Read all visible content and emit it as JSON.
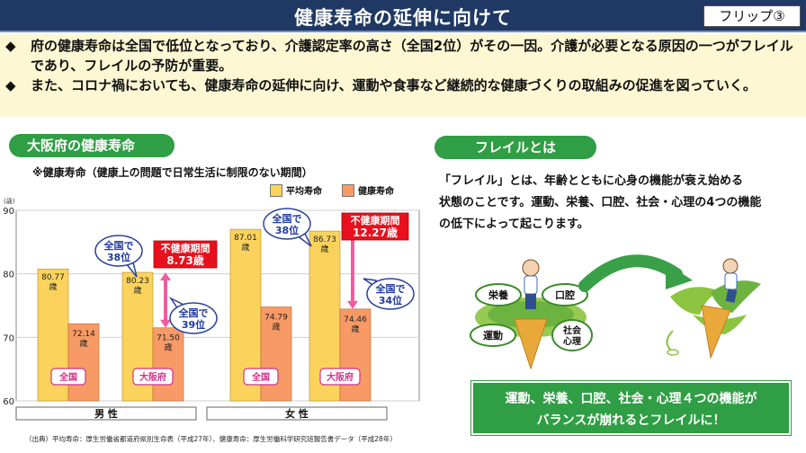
{
  "header": {
    "title": "健康寿命の延伸に向けて",
    "flip_label": "フリップ③"
  },
  "intro": {
    "bullet_mark": "◆",
    "bullets": [
      "府の健康寿命は全国で低位となっており、介護認定率の高さ（全国2位）がその一因。介護が必要となる原因の一つがフレイルであり、フレイルの予防が重要。",
      "また、コロナ禍においても、健康寿命の延伸に向け、運動や食事など継続的な健康づくりの取組みの促進を図っていく。"
    ]
  },
  "osaka_section": {
    "pill": "大阪府の健康寿命",
    "note": "※健康寿命（健康上の問題で日常生活に制限のない期間）",
    "source": "（出典）平均寿命：厚生労働省都道府県別生命表（平成27年）、健康寿命：厚生労働科学研究班報告書データ（平成28年）"
  },
  "chart_data": {
    "type": "bar",
    "y_unit_label": "(歳)",
    "ylim": [
      60,
      90
    ],
    "yticks": [
      60,
      70,
      80,
      90
    ],
    "legend": [
      {
        "label": "平均寿命",
        "color": "#fbd35c"
      },
      {
        "label": "健康寿命",
        "color": "#f79a66"
      }
    ],
    "groups": [
      {
        "label": "全国",
        "gender": "男性",
        "avg": 80.77,
        "avg_label": "80.77\n歳",
        "healthy": 72.14,
        "healthy_label": "72.14\n歳"
      },
      {
        "label": "大阪府",
        "gender": "男性",
        "avg": 80.23,
        "avg_label": "80.23\n歳",
        "healthy": 71.5,
        "healthy_label": "71.50\n歳"
      },
      {
        "label": "全国",
        "gender": "女性",
        "avg": 87.01,
        "avg_label": "87.01\n歳",
        "healthy": 74.79,
        "healthy_label": "74.79\n歳"
      },
      {
        "label": "大阪府",
        "gender": "女性",
        "avg": 86.73,
        "avg_label": "86.73\n歳",
        "healthy": 74.46,
        "healthy_label": "74.46\n歳"
      }
    ],
    "genders": [
      "男 性",
      "女 性"
    ],
    "callouts": [
      {
        "text": "全国で\n38位"
      },
      {
        "text": "全国で\n39位"
      },
      {
        "text": "全国で\n38位"
      },
      {
        "text": "全国で\n34位"
      }
    ],
    "unhealthy_periods": [
      {
        "label": "不健康期間",
        "value": "8.73歳"
      },
      {
        "label": "不健康期間",
        "value": "12.27歳"
      }
    ]
  },
  "frail_section": {
    "pill": "フレイルとは",
    "description_lines": [
      "「フレイル」とは、年齢とともに心身の機能が衰え始める",
      "状態のことです。運動、栄養、口腔、社会・心理の4つの機能",
      "の低下によって起こります。"
    ],
    "leaves": [
      "栄養",
      "口腔",
      "運動",
      "社会\n心理"
    ],
    "conclusion_lines": [
      "運動、栄養、口腔、社会・心理４つの機能が",
      "バランスが崩れるとフレイルに！"
    ]
  }
}
